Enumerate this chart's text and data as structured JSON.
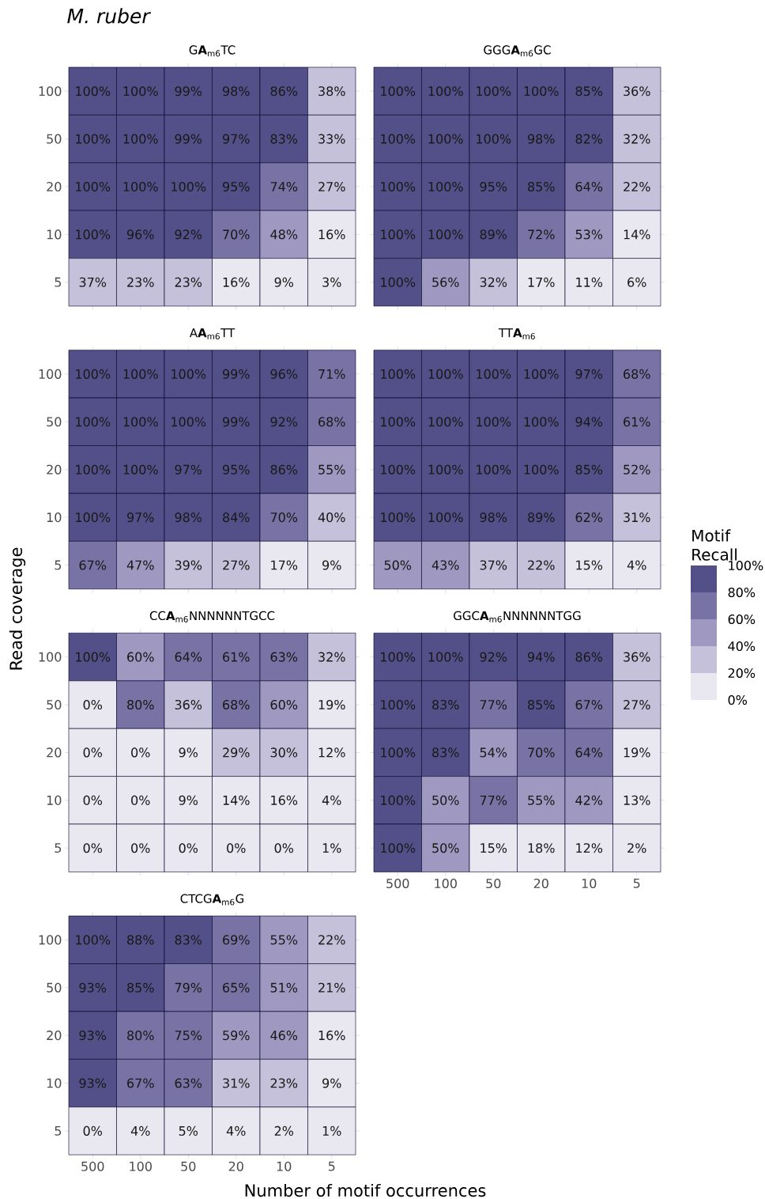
{
  "chart_data": [
    {
      "type": "heatmap",
      "title": "G**A**$_{m6}$TC",
      "annotations": [
        "M. ruber"
      ],
      "tick_labels": "y",
      "categories": [
        "500",
        "100",
        "50",
        "20",
        "10",
        "5"
      ],
      "y_categories": [
        "100",
        "50",
        "20",
        "10",
        "5"
      ],
      "cells": [
        [
          100,
          100,
          99,
          98,
          86,
          38
        ],
        [
          100,
          100,
          99,
          97,
          83,
          33
        ],
        [
          100,
          100,
          100,
          95,
          74,
          27
        ],
        [
          100,
          96,
          92,
          70,
          48,
          16
        ],
        [
          37,
          23,
          23,
          16,
          9,
          3
        ]
      ],
      "cell_labels": [
        [
          "100%",
          "100%",
          "99%",
          "98%",
          "86%",
          "38%"
        ],
        [
          "100%",
          "100%",
          "99%",
          "97%",
          "83%",
          "33%"
        ],
        [
          "100%",
          "100%",
          "100%",
          "95%",
          "74%",
          "27%"
        ],
        [
          "100%",
          "96%",
          "92%",
          "70%",
          "48%",
          "16%"
        ],
        [
          "37%",
          "23%",
          "23%",
          "16%",
          "9%",
          "3%"
        ]
      ]
    },
    {
      "type": "heatmap",
      "title": "GGG**A**$_{m6}$GC",
      "tick_labels": false,
      "categories": [
        "500",
        "100",
        "50",
        "20",
        "10",
        "5"
      ],
      "y_categories": [
        "100",
        "50",
        "20",
        "10",
        "5"
      ],
      "cells": [
        [
          100,
          100,
          100,
          100,
          85,
          36
        ],
        [
          100,
          100,
          100,
          98,
          82,
          32
        ],
        [
          100,
          100,
          95,
          85,
          64,
          22
        ],
        [
          100,
          100,
          89,
          72,
          53,
          14
        ],
        [
          100,
          56,
          32,
          17,
          11,
          6
        ]
      ],
      "cell_labels": [
        [
          "100%",
          "100%",
          "100%",
          "100%",
          "85%",
          "36%"
        ],
        [
          "100%",
          "100%",
          "100%",
          "98%",
          "82%",
          "32%"
        ],
        [
          "100%",
          "100%",
          "95%",
          "85%",
          "64%",
          "22%"
        ],
        [
          "100%",
          "100%",
          "89%",
          "72%",
          "53%",
          "14%"
        ],
        [
          "100%",
          "56%",
          "32%",
          "17%",
          "11%",
          "6%"
        ]
      ]
    },
    {
      "type": "heatmap",
      "title": "A**A**$_{m6}$TT",
      "ylabel": "Read coverage",
      "tick_labels": "y",
      "categories": [
        "500",
        "100",
        "50",
        "20",
        "10",
        "5"
      ],
      "y_categories": [
        "100",
        "50",
        "20",
        "10",
        "5"
      ],
      "cells": [
        [
          100,
          100,
          100,
          99,
          96,
          71
        ],
        [
          100,
          100,
          100,
          99,
          92,
          68
        ],
        [
          100,
          100,
          97,
          95,
          86,
          55
        ],
        [
          100,
          97,
          98,
          84,
          70,
          40
        ],
        [
          67,
          47,
          39,
          27,
          17,
          9
        ]
      ],
      "cell_labels": [
        [
          "100%",
          "100%",
          "100%",
          "99%",
          "96%",
          "71%"
        ],
        [
          "100%",
          "100%",
          "100%",
          "99%",
          "92%",
          "68%"
        ],
        [
          "100%",
          "100%",
          "97%",
          "95%",
          "86%",
          "55%"
        ],
        [
          "100%",
          "97%",
          "98%",
          "84%",
          "70%",
          "40%"
        ],
        [
          "67%",
          "47%",
          "39%",
          "27%",
          "17%",
          "9%"
        ]
      ]
    },
    {
      "type": "heatmap",
      "title": "TT**A**$_{m6}$",
      "tick_labels": false,
      "clabel": "Motif Recall",
      "categories": [
        "500",
        "100",
        "50",
        "20",
        "10",
        "5"
      ],
      "y_categories": [
        "100",
        "50",
        "20",
        "10",
        "5"
      ],
      "cells": [
        [
          100,
          100,
          100,
          100,
          97,
          68
        ],
        [
          100,
          100,
          100,
          100,
          94,
          61
        ],
        [
          100,
          100,
          100,
          100,
          85,
          52
        ],
        [
          100,
          100,
          98,
          89,
          62,
          31
        ],
        [
          50,
          43,
          37,
          22,
          15,
          4
        ]
      ],
      "cell_labels": [
        [
          "100%",
          "100%",
          "100%",
          "100%",
          "97%",
          "68%"
        ],
        [
          "100%",
          "100%",
          "100%",
          "100%",
          "94%",
          "61%"
        ],
        [
          "100%",
          "100%",
          "100%",
          "100%",
          "85%",
          "52%"
        ],
        [
          "100%",
          "100%",
          "98%",
          "89%",
          "62%",
          "31%"
        ],
        [
          "50%",
          "43%",
          "37%",
          "22%",
          "15%",
          "4%"
        ]
      ],
      "colors": [
        "#e9e7f0",
        "#c5c1da",
        "#9f98c0",
        "#7872a5",
        "#535089"
      ],
      "clim": [
        0,
        100
      ],
      "cticks": [
        {
          "value": 0,
          "label": "0%"
        },
        {
          "value": 20,
          "label": "20%"
        },
        {
          "value": 40,
          "label": "40%"
        },
        {
          "value": 60,
          "label": "60%"
        },
        {
          "value": 80,
          "label": "80%"
        },
        {
          "value": 100,
          "label": "100%"
        }
      ]
    },
    {
      "type": "heatmap",
      "title": "CC**A**$_{m6}$NNNNNNTGCC",
      "tick_labels": "y",
      "categories": [
        "500",
        "100",
        "50",
        "20",
        "10",
        "5"
      ],
      "y_categories": [
        "100",
        "50",
        "20",
        "10",
        "5"
      ],
      "cells": [
        [
          100,
          60,
          64,
          61,
          63,
          32
        ],
        [
          0,
          80,
          36,
          68,
          60,
          19
        ],
        [
          0,
          0,
          9,
          29,
          30,
          12
        ],
        [
          0,
          0,
          9,
          14,
          16,
          4
        ],
        [
          0,
          0,
          0,
          0,
          0,
          1
        ]
      ],
      "cell_labels": [
        [
          "100%",
          "60%",
          "64%",
          "61%",
          "63%",
          "32%"
        ],
        [
          "0%",
          "80%",
          "36%",
          "68%",
          "60%",
          "19%"
        ],
        [
          "0%",
          "0%",
          "9%",
          "29%",
          "30%",
          "12%"
        ],
        [
          "0%",
          "0%",
          "9%",
          "14%",
          "16%",
          "4%"
        ],
        [
          "0%",
          "0%",
          "0%",
          "0%",
          "0%",
          "1%"
        ]
      ]
    },
    {
      "type": "heatmap",
      "title": "GGC**A**$_{m6}$NNNNNNTGG",
      "tick_labels": "x",
      "categories": [
        "500",
        "100",
        "50",
        "20",
        "10",
        "5"
      ],
      "y_categories": [
        "100",
        "50",
        "20",
        "10",
        "5"
      ],
      "cells": [
        [
          100,
          100,
          92,
          94,
          86,
          36
        ],
        [
          100,
          83,
          77,
          85,
          67,
          27
        ],
        [
          100,
          83,
          54,
          70,
          64,
          19
        ],
        [
          100,
          50,
          77,
          55,
          42,
          13
        ],
        [
          100,
          50,
          15,
          18,
          12,
          2
        ]
      ],
      "cell_labels": [
        [
          "100%",
          "100%",
          "92%",
          "94%",
          "86%",
          "36%"
        ],
        [
          "100%",
          "83%",
          "77%",
          "85%",
          "67%",
          "27%"
        ],
        [
          "100%",
          "83%",
          "54%",
          "70%",
          "64%",
          "19%"
        ],
        [
          "100%",
          "50%",
          "77%",
          "55%",
          "42%",
          "13%"
        ],
        [
          "100%",
          "50%",
          "15%",
          "18%",
          "12%",
          "2%"
        ]
      ]
    },
    {
      "type": "heatmap",
      "title": "CTCG**A**$_{m6}$G",
      "xlabel": "Number of motif occurrences",
      "categories": [
        "500",
        "100",
        "50",
        "20",
        "10",
        "5"
      ],
      "y_categories": [
        "100",
        "50",
        "20",
        "10",
        "5"
      ],
      "cells": [
        [
          100,
          88,
          83,
          69,
          55,
          22
        ],
        [
          93,
          85,
          79,
          65,
          51,
          21
        ],
        [
          93,
          80,
          75,
          59,
          46,
          16
        ],
        [
          93,
          67,
          63,
          31,
          23,
          9
        ],
        [
          0,
          4,
          5,
          4,
          2,
          1
        ]
      ],
      "cell_labels": [
        [
          "100%",
          "88%",
          "83%",
          "69%",
          "55%",
          "22%"
        ],
        [
          "93%",
          "85%",
          "79%",
          "65%",
          "51%",
          "21%"
        ],
        [
          "93%",
          "80%",
          "75%",
          "59%",
          "46%",
          "16%"
        ],
        [
          "93%",
          "67%",
          "63%",
          "31%",
          "23%",
          "9%"
        ],
        [
          "0%",
          "4%",
          "5%",
          "4%",
          "2%",
          "1%"
        ]
      ]
    }
  ]
}
